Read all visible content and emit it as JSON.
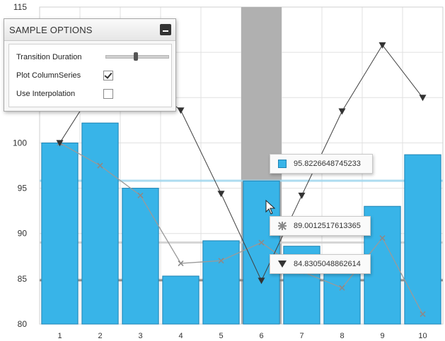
{
  "panel": {
    "title": "SAMPLE OPTIONS",
    "options": {
      "transition_label": "Transition Duration",
      "transition_value": 0.48,
      "plot_column_label": "Plot ColumnSeries",
      "plot_column_checked": true,
      "interpolation_label": "Use Interpolation",
      "interpolation_checked": false
    }
  },
  "tooltips": {
    "column": "95.8226648745233",
    "cross": "89.0012517613365",
    "triangle": "84.8305048862614"
  },
  "colors": {
    "column_fill": "#38b4e8",
    "column_stroke": "#1f83b3",
    "highlight": "#b0b0b0",
    "line_dark": "#404040",
    "line_light": "#9a9a9a",
    "grid": "#e0e0e0"
  },
  "chart_data": {
    "type": "bar",
    "categories": [
      "1",
      "2",
      "3",
      "4",
      "5",
      "6",
      "7",
      "8",
      "9",
      "10"
    ],
    "ylim": [
      80,
      115
    ],
    "yticks": [
      "80",
      "85",
      "90",
      "95",
      "100",
      "115"
    ],
    "highlight_category": "6",
    "series": [
      {
        "kind": "column",
        "values": [
          100,
          102.2,
          95,
          85.3,
          89.2,
          95.8,
          88.6,
          86.3,
          93,
          98.7
        ]
      },
      {
        "kind": "line-cross",
        "values": [
          100,
          97.5,
          94.2,
          86.7,
          87,
          89,
          85.8,
          84,
          89.5,
          81.1
        ]
      },
      {
        "kind": "line-triangle",
        "values": [
          100,
          107,
          107.2,
          103.6,
          94.4,
          84.8,
          94.2,
          103.5,
          110.8,
          105
        ]
      }
    ],
    "reference_lines": [
      95.8226648745233,
      89.0012517613365,
      84.8305048862614
    ]
  }
}
